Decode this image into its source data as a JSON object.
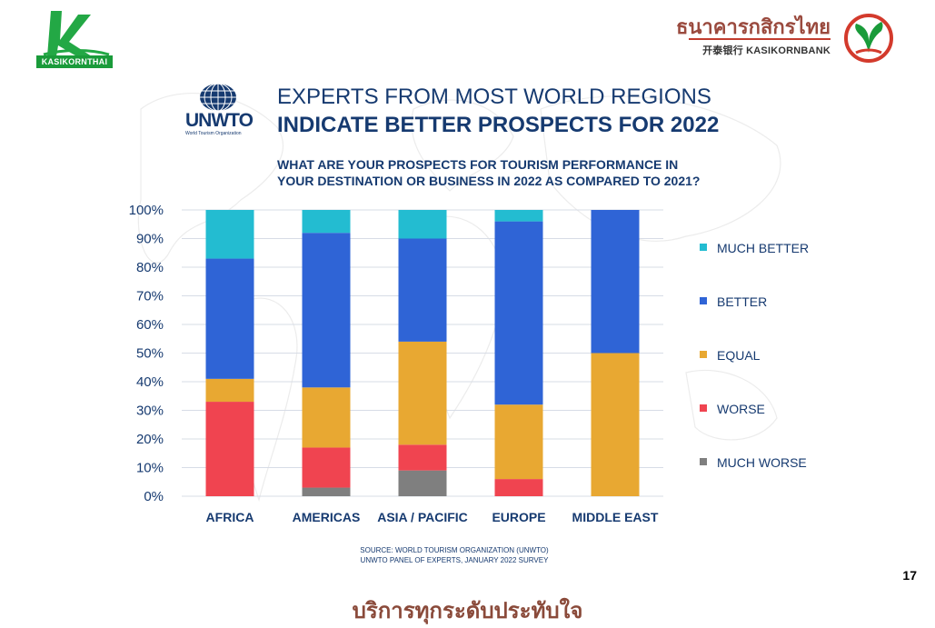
{
  "header": {
    "left_logo_text": "KASIKORNTHAI",
    "right_logo_thai": "ธนาคารกสิกรไทย",
    "right_logo_eng": "开泰银行 KASIKORNBANK"
  },
  "unwto": {
    "name": "UNWTO",
    "subtitle": "World Tourism Organization"
  },
  "title_line1": "EXPERTS FROM MOST WORLD REGIONS",
  "title_line2": "INDICATE BETTER PROSPECTS FOR 2022",
  "question_line1": "WHAT ARE YOUR PROSPECTS FOR TOURISM PERFORMANCE IN",
  "question_line2": "YOUR DESTINATION OR BUSINESS IN 2022 AS COMPARED TO 2021?",
  "chart_data": {
    "type": "bar",
    "stacked": true,
    "categories": [
      "AFRICA",
      "AMERICAS",
      "ASIA / PACIFIC",
      "EUROPE",
      "MIDDLE EAST"
    ],
    "yticks": [
      "0%",
      "10%",
      "20%",
      "30%",
      "40%",
      "50%",
      "60%",
      "70%",
      "80%",
      "90%",
      "100%"
    ],
    "ylim": [
      0,
      100
    ],
    "grid": true,
    "legend_position": "right",
    "series": [
      {
        "name": "MUCH WORSE",
        "color": "#7f7f7f",
        "values": [
          0,
          3,
          9,
          0,
          0
        ]
      },
      {
        "name": "WORSE",
        "color": "#f04450",
        "values": [
          33,
          14,
          9,
          6,
          0
        ]
      },
      {
        "name": "EQUAL",
        "color": "#e8a832",
        "values": [
          8,
          21,
          36,
          26,
          50
        ]
      },
      {
        "name": "BETTER",
        "color": "#2f64d6",
        "values": [
          42,
          54,
          36,
          64,
          50
        ]
      },
      {
        "name": "MUCH BETTER",
        "color": "#23bcd1",
        "values": [
          17,
          8,
          10,
          4,
          0
        ]
      }
    ]
  },
  "source_line1": "SOURCE: WORLD TOURISM ORGANIZATION (UNWTO)",
  "source_line2": "UNWTO PANEL OF EXPERTS, JANUARY 2022 SURVEY",
  "page_number": "17",
  "footer_text": "บริการทุกระดับประทับใจ"
}
